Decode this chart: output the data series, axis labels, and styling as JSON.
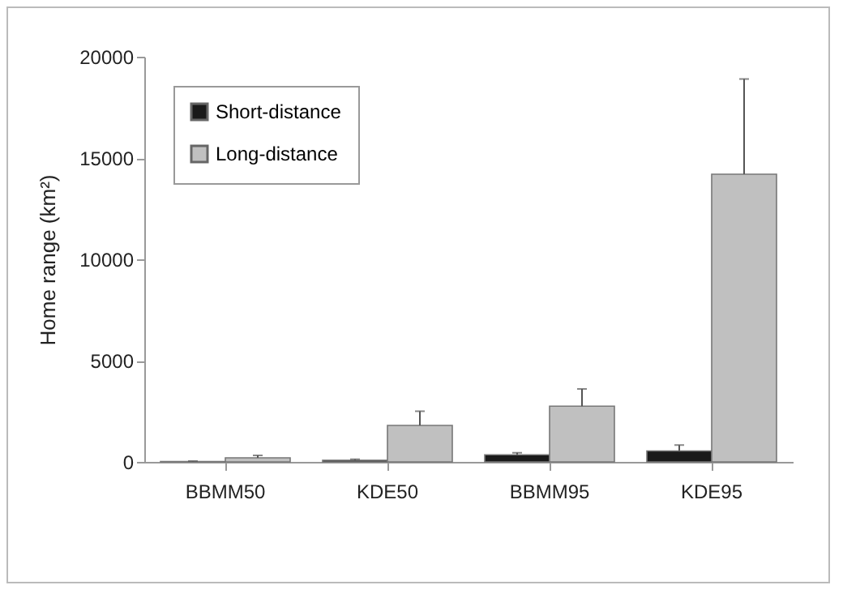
{
  "chart_data": {
    "type": "bar",
    "ylabel": "Home range (km²)",
    "categories": [
      "BBMM50",
      "KDE50",
      "BBMM95",
      "KDE95"
    ],
    "series": [
      {
        "name": "Short-distance",
        "color": "#1a1a1a",
        "values": [
          20,
          80,
          350,
          540
        ],
        "errors": [
          [
            20,
            40
          ],
          [
            80,
            130
          ],
          [
            350,
            450
          ],
          [
            540,
            830
          ]
        ]
      },
      {
        "name": "Long-distance",
        "color": "#c0c0c0",
        "values": [
          200,
          1800,
          2750,
          14200
        ],
        "errors": [
          [
            200,
            320
          ],
          [
            1800,
            2500
          ],
          [
            2750,
            3600
          ],
          [
            14200,
            18900
          ]
        ]
      }
    ],
    "ylim": [
      0,
      20000
    ],
    "yticks": [
      0,
      5000,
      10000,
      15000,
      20000
    ],
    "grid": false,
    "legend": "top left"
  }
}
